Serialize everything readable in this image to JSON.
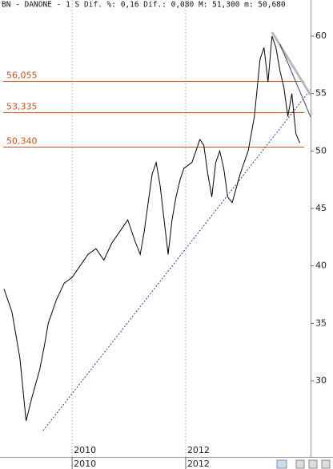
{
  "chart_data": {
    "type": "line",
    "title": "BN - DANONE - 1 S Dif. %: 0,16 Dif.: 0,080 M: 51,300 m: 50,680",
    "xlim": [
      2008.73,
      2014.2
    ],
    "xticks": [
      2010,
      2012
    ],
    "ylim": [
      23.37,
      63.14
    ],
    "yticks": [
      30,
      35,
      40,
      45,
      50,
      55,
      60
    ],
    "grid": true,
    "series": [
      {
        "color": "#000000",
        "x": [
          2008.8,
          2008.94,
          2009.08,
          2009.19,
          2009.29,
          2009.43,
          2009.51,
          2009.58,
          2009.72,
          2009.86,
          2010.0,
          2010.14,
          2010.28,
          2010.42,
          2010.56,
          2010.7,
          2010.84,
          2010.98,
          2011.12,
          2011.2,
          2011.27,
          2011.34,
          2011.41,
          2011.48,
          2011.55,
          2011.62,
          2011.69,
          2011.76,
          2011.83,
          2011.9,
          2011.97,
          2012.11,
          2012.25,
          2012.32,
          2012.39,
          2012.46,
          2012.53,
          2012.6,
          2012.67,
          2012.74,
          2012.82,
          2012.96,
          2013.1,
          2013.21,
          2013.31,
          2013.38,
          2013.45,
          2013.52,
          2013.59,
          2013.66,
          2013.73,
          2013.8,
          2013.87,
          2013.94,
          2014.01
        ],
        "values": [
          38,
          36,
          32,
          26.5,
          28.5,
          31,
          33,
          35,
          37,
          38.5,
          39,
          40,
          41,
          41.5,
          40.5,
          42,
          43,
          44,
          42,
          41,
          43,
          45.5,
          48,
          49,
          47,
          44,
          41,
          44,
          46,
          47.5,
          48.5,
          49,
          51,
          50.5,
          48,
          46,
          49,
          50,
          48.5,
          46,
          45.5,
          48,
          50,
          53,
          58,
          59,
          56,
          60,
          59,
          57,
          55.5,
          53,
          55,
          51.5,
          50.7
        ]
      }
    ],
    "levels": [
      {
        "value": 56.055,
        "label": "56,055"
      },
      {
        "value": 53.335,
        "label": "53,335"
      },
      {
        "value": 50.34,
        "label": "50,340"
      }
    ],
    "trendlines": [
      {
        "color": "#2b3f8c",
        "x": [
          2009.49,
          2014.2
        ],
        "values": [
          25.67,
          55.35
        ]
      },
      {
        "color": "#b8b8b8",
        "x": [
          2013.52,
          2014.2
        ],
        "values": [
          60.35,
          54.87
        ]
      },
      {
        "color": "#3a4a6a",
        "x": [
          2013.66,
          2014.2
        ],
        "values": [
          59.3,
          52.97
        ]
      }
    ]
  }
}
